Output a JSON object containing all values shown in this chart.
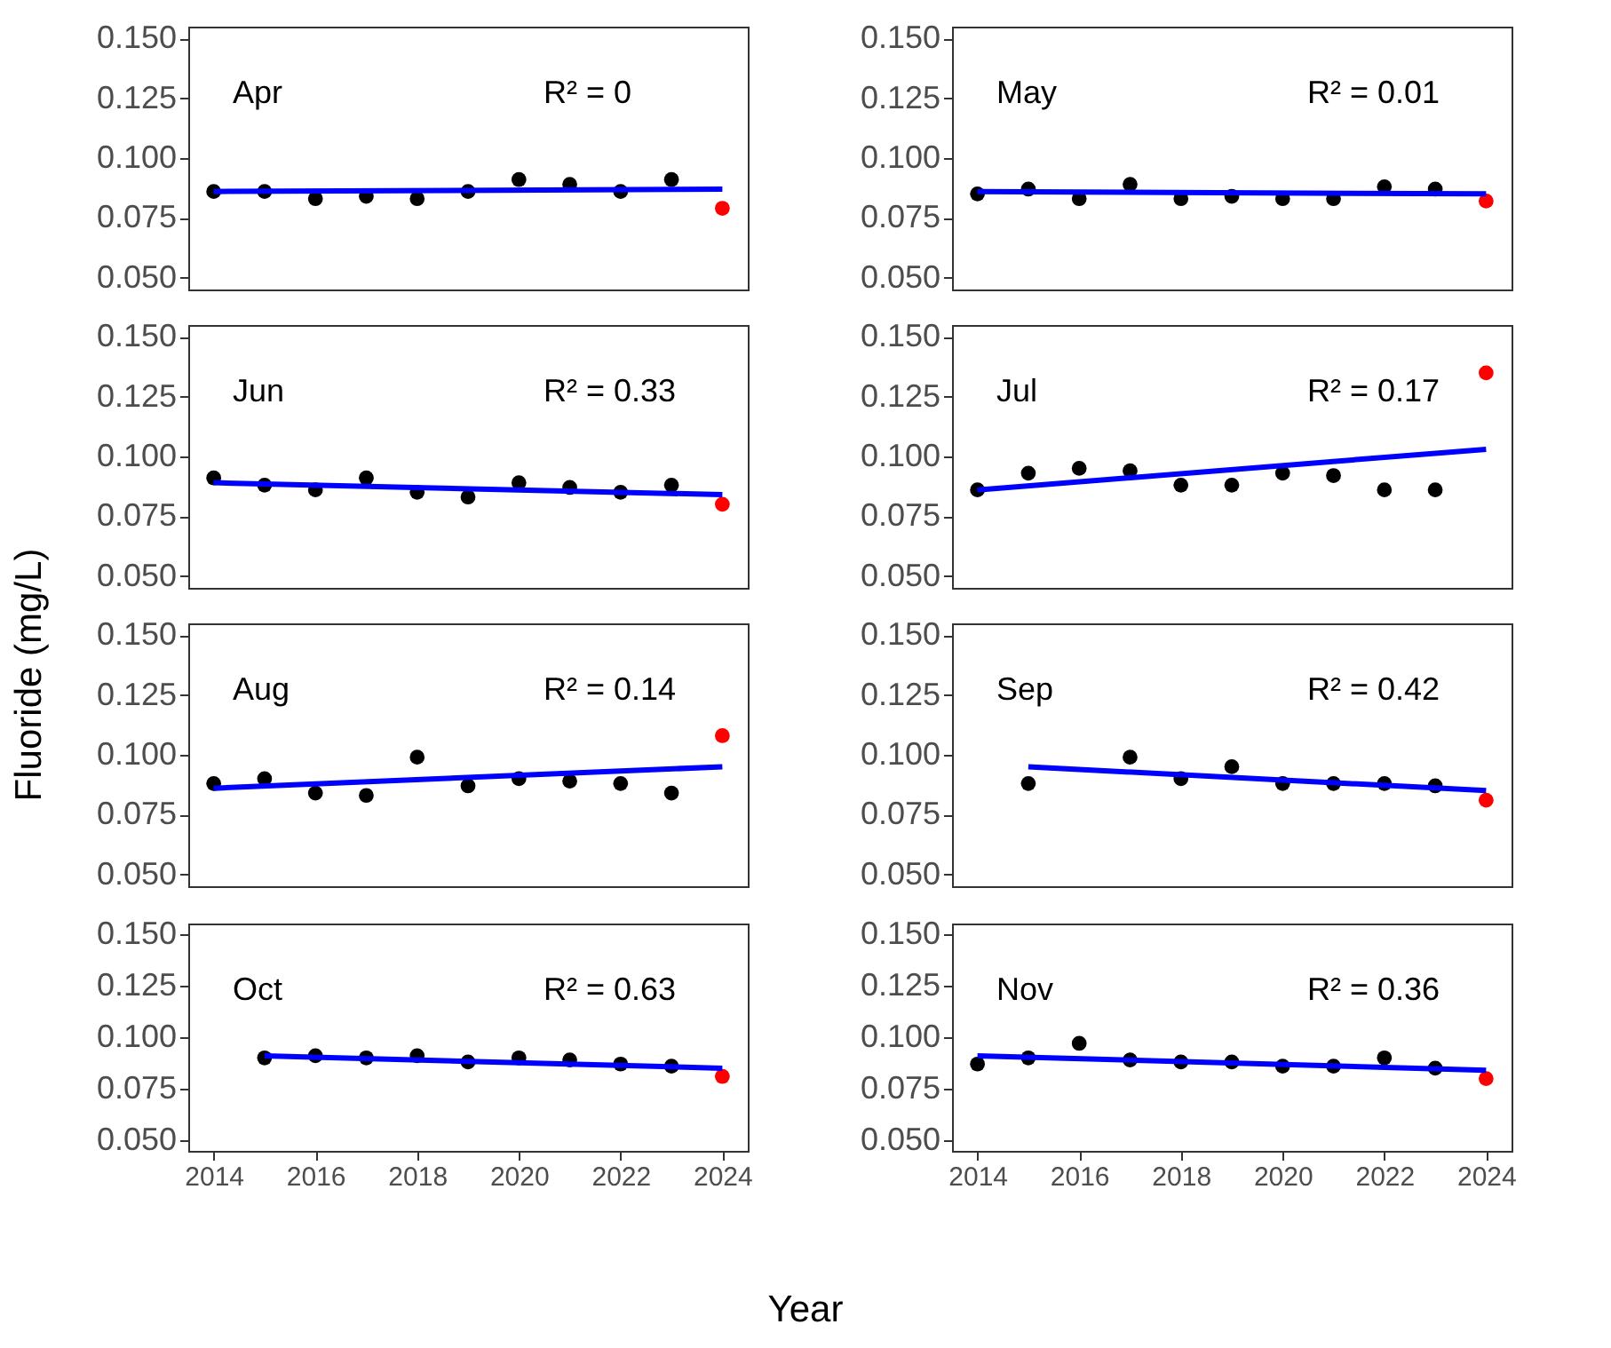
{
  "chart_data": [
    {
      "type": "scatter",
      "annotations": [
        "Apr",
        "R² = 0"
      ],
      "xlim": [
        2013.5,
        2024.5
      ],
      "xticks": [
        2014,
        2016,
        2018,
        2020,
        2022,
        2024
      ],
      "ylim": [
        0.045,
        0.155
      ],
      "yticks": [
        {
          "value": 0.05,
          "label": "0.050"
        },
        {
          "value": 0.075,
          "label": "0.075"
        },
        {
          "value": 0.1,
          "label": "0.100"
        },
        {
          "value": 0.125,
          "label": "0.125"
        },
        {
          "value": 0.15,
          "label": "0.150"
        }
      ],
      "tick_labels": "y",
      "series": [
        {
          "type": "scatter",
          "color": "#000000",
          "x": [
            2014,
            2015,
            2016,
            2017,
            2018,
            2019,
            2020,
            2021,
            2022,
            2023
          ],
          "values": [
            0.086,
            0.086,
            0.083,
            0.084,
            0.083,
            0.086,
            0.091,
            0.089,
            0.086,
            0.091
          ]
        },
        {
          "type": "scatter",
          "color": "#ff0000",
          "x": [
            2024
          ],
          "values": [
            0.079
          ]
        },
        {
          "type": "line",
          "color": "#0000ff",
          "x": [
            2014,
            2024
          ],
          "values": [
            0.086,
            0.087
          ]
        }
      ]
    },
    {
      "type": "scatter",
      "annotations": [
        "May",
        "R² = 0.01"
      ],
      "xlim": [
        2013.5,
        2024.5
      ],
      "xticks": [
        2014,
        2016,
        2018,
        2020,
        2022,
        2024
      ],
      "ylim": [
        0.045,
        0.155
      ],
      "yticks": [
        {
          "value": 0.05,
          "label": "0.050"
        },
        {
          "value": 0.075,
          "label": "0.075"
        },
        {
          "value": 0.1,
          "label": "0.100"
        },
        {
          "value": 0.125,
          "label": "0.125"
        },
        {
          "value": 0.15,
          "label": "0.150"
        }
      ],
      "tick_labels": "y",
      "series": [
        {
          "type": "scatter",
          "color": "#000000",
          "x": [
            2014,
            2015,
            2016,
            2017,
            2018,
            2019,
            2020,
            2021,
            2022,
            2023
          ],
          "values": [
            0.085,
            0.087,
            0.083,
            0.089,
            0.083,
            0.084,
            0.083,
            0.083,
            0.088,
            0.087
          ]
        },
        {
          "type": "scatter",
          "color": "#ff0000",
          "x": [
            2024
          ],
          "values": [
            0.082
          ]
        },
        {
          "type": "line",
          "color": "#0000ff",
          "x": [
            2014,
            2024
          ],
          "values": [
            0.086,
            0.085
          ]
        }
      ]
    },
    {
      "type": "scatter",
      "annotations": [
        "Jun",
        "R² = 0.33"
      ],
      "xlim": [
        2013.5,
        2024.5
      ],
      "xticks": [
        2014,
        2016,
        2018,
        2020,
        2022,
        2024
      ],
      "ylim": [
        0.045,
        0.155
      ],
      "yticks": [
        {
          "value": 0.05,
          "label": "0.050"
        },
        {
          "value": 0.075,
          "label": "0.075"
        },
        {
          "value": 0.1,
          "label": "0.100"
        },
        {
          "value": 0.125,
          "label": "0.125"
        },
        {
          "value": 0.15,
          "label": "0.150"
        }
      ],
      "tick_labels": "y",
      "series": [
        {
          "type": "scatter",
          "color": "#000000",
          "x": [
            2014,
            2015,
            2016,
            2017,
            2018,
            2019,
            2020,
            2021,
            2022,
            2023
          ],
          "values": [
            0.091,
            0.088,
            0.086,
            0.091,
            0.085,
            0.083,
            0.089,
            0.087,
            0.085,
            0.088
          ]
        },
        {
          "type": "scatter",
          "color": "#ff0000",
          "x": [
            2024
          ],
          "values": [
            0.08
          ]
        },
        {
          "type": "line",
          "color": "#0000ff",
          "x": [
            2014,
            2024
          ],
          "values": [
            0.089,
            0.084
          ]
        }
      ]
    },
    {
      "type": "scatter",
      "annotations": [
        "Jul",
        "R² = 0.17"
      ],
      "xlim": [
        2013.5,
        2024.5
      ],
      "xticks": [
        2014,
        2016,
        2018,
        2020,
        2022,
        2024
      ],
      "ylim": [
        0.045,
        0.155
      ],
      "yticks": [
        {
          "value": 0.05,
          "label": "0.050"
        },
        {
          "value": 0.075,
          "label": "0.075"
        },
        {
          "value": 0.1,
          "label": "0.100"
        },
        {
          "value": 0.125,
          "label": "0.125"
        },
        {
          "value": 0.15,
          "label": "0.150"
        }
      ],
      "tick_labels": "y",
      "series": [
        {
          "type": "scatter",
          "color": "#000000",
          "x": [
            2014,
            2015,
            2016,
            2017,
            2018,
            2019,
            2020,
            2021,
            2022,
            2023
          ],
          "values": [
            0.086,
            0.093,
            0.095,
            0.094,
            0.088,
            0.088,
            0.093,
            0.092,
            0.086,
            0.086
          ]
        },
        {
          "type": "scatter",
          "color": "#ff0000",
          "x": [
            2024
          ],
          "values": [
            0.135
          ]
        },
        {
          "type": "line",
          "color": "#0000ff",
          "x": [
            2014,
            2024
          ],
          "values": [
            0.086,
            0.103
          ]
        }
      ]
    },
    {
      "type": "scatter",
      "ylabel": "Fluoride (mg/L)",
      "annotations": [
        "Aug",
        "R² = 0.14"
      ],
      "xlim": [
        2013.5,
        2024.5
      ],
      "xticks": [
        2014,
        2016,
        2018,
        2020,
        2022,
        2024
      ],
      "ylim": [
        0.045,
        0.155
      ],
      "yticks": [
        {
          "value": 0.05,
          "label": "0.050"
        },
        {
          "value": 0.075,
          "label": "0.075"
        },
        {
          "value": 0.1,
          "label": "0.100"
        },
        {
          "value": 0.125,
          "label": "0.125"
        },
        {
          "value": 0.15,
          "label": "0.150"
        }
      ],
      "tick_labels": "y",
      "series": [
        {
          "type": "scatter",
          "color": "#000000",
          "x": [
            2014,
            2015,
            2016,
            2017,
            2018,
            2019,
            2020,
            2021,
            2022,
            2023
          ],
          "values": [
            0.088,
            0.09,
            0.084,
            0.083,
            0.099,
            0.087,
            0.09,
            0.089,
            0.088,
            0.084
          ]
        },
        {
          "type": "scatter",
          "color": "#ff0000",
          "x": [
            2024
          ],
          "values": [
            0.108
          ]
        },
        {
          "type": "line",
          "color": "#0000ff",
          "x": [
            2014,
            2024
          ],
          "values": [
            0.086,
            0.095
          ]
        }
      ]
    },
    {
      "type": "scatter",
      "annotations": [
        "Sep",
        "R² = 0.42"
      ],
      "xlim": [
        2013.5,
        2024.5
      ],
      "xticks": [
        2014,
        2016,
        2018,
        2020,
        2022,
        2024
      ],
      "ylim": [
        0.045,
        0.155
      ],
      "yticks": [
        {
          "value": 0.05,
          "label": "0.050"
        },
        {
          "value": 0.075,
          "label": "0.075"
        },
        {
          "value": 0.1,
          "label": "0.100"
        },
        {
          "value": 0.125,
          "label": "0.125"
        },
        {
          "value": 0.15,
          "label": "0.150"
        }
      ],
      "tick_labels": "y",
      "series": [
        {
          "type": "scatter",
          "color": "#000000",
          "x": [
            2015,
            2017,
            2018,
            2019,
            2020,
            2021,
            2022,
            2023
          ],
          "values": [
            0.088,
            0.099,
            0.09,
            0.095,
            0.088,
            0.088,
            0.088,
            0.087
          ]
        },
        {
          "type": "scatter",
          "color": "#ff0000",
          "x": [
            2024
          ],
          "values": [
            0.081
          ]
        },
        {
          "type": "line",
          "color": "#0000ff",
          "x": [
            2015,
            2024
          ],
          "values": [
            0.095,
            0.085
          ]
        }
      ]
    },
    {
      "type": "scatter",
      "xlabel": "Year",
      "annotations": [
        "Oct",
        "R² = 0.63"
      ],
      "xlim": [
        2013.5,
        2024.5
      ],
      "xticks": [
        2014,
        2016,
        2018,
        2020,
        2022,
        2024
      ],
      "ylim": [
        0.045,
        0.155
      ],
      "yticks": [
        {
          "value": 0.05,
          "label": "0.050"
        },
        {
          "value": 0.075,
          "label": "0.075"
        },
        {
          "value": 0.1,
          "label": "0.100"
        },
        {
          "value": 0.125,
          "label": "0.125"
        },
        {
          "value": 0.15,
          "label": "0.150"
        }
      ],
      "series": [
        {
          "type": "scatter",
          "color": "#000000",
          "x": [
            2015,
            2016,
            2017,
            2018,
            2019,
            2020,
            2021,
            2022,
            2023
          ],
          "values": [
            0.09,
            0.091,
            0.09,
            0.091,
            0.088,
            0.09,
            0.089,
            0.087,
            0.086
          ]
        },
        {
          "type": "scatter",
          "color": "#ff0000",
          "x": [
            2024
          ],
          "values": [
            0.081
          ]
        },
        {
          "type": "line",
          "color": "#0000ff",
          "x": [
            2015,
            2024
          ],
          "values": [
            0.091,
            0.085
          ]
        }
      ]
    },
    {
      "type": "scatter",
      "annotations": [
        "Nov",
        "R² = 0.36"
      ],
      "xlim": [
        2013.5,
        2024.5
      ],
      "xticks": [
        2014,
        2016,
        2018,
        2020,
        2022,
        2024
      ],
      "ylim": [
        0.045,
        0.155
      ],
      "yticks": [
        {
          "value": 0.05,
          "label": "0.050"
        },
        {
          "value": 0.075,
          "label": "0.075"
        },
        {
          "value": 0.1,
          "label": "0.100"
        },
        {
          "value": 0.125,
          "label": "0.125"
        },
        {
          "value": 0.15,
          "label": "0.150"
        }
      ],
      "series": [
        {
          "type": "scatter",
          "color": "#000000",
          "x": [
            2014,
            2015,
            2016,
            2017,
            2018,
            2019,
            2020,
            2021,
            2022,
            2023
          ],
          "values": [
            0.087,
            0.09,
            0.097,
            0.089,
            0.088,
            0.088,
            0.086,
            0.086,
            0.09,
            0.085
          ]
        },
        {
          "type": "scatter",
          "color": "#ff0000",
          "x": [
            2024
          ],
          "values": [
            0.08
          ]
        },
        {
          "type": "line",
          "color": "#0000ff",
          "x": [
            2014,
            2024
          ],
          "values": [
            0.091,
            0.084
          ]
        }
      ]
    }
  ]
}
